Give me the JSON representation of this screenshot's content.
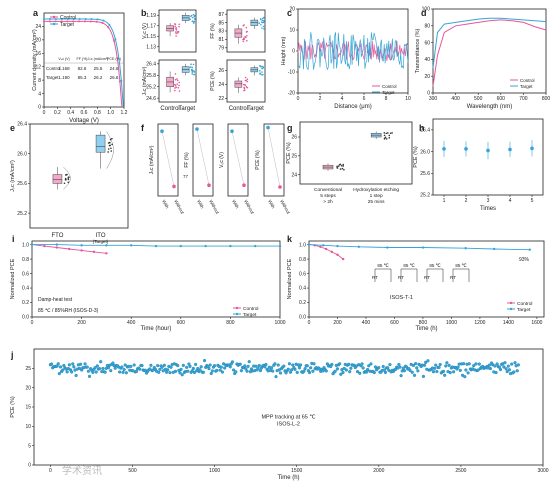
{
  "colors": {
    "control": "#e8559a",
    "target": "#36a5d6",
    "control_fill": "#f3a9cb",
    "target_fill": "#93cfee"
  },
  "legend": {
    "control": "Control",
    "target": "Target"
  },
  "panel_a": {
    "label": "a",
    "xlabel": "Voltage (V)",
    "ylabel": "Current density (mA/cm²)",
    "table": {
      "headers": [
        "Vₒc (V)",
        "FF (%)",
        "Jₛc (mA/cm²)",
        "PCE (%)"
      ],
      "rows": [
        {
          "name": "Control",
          "vals": [
            "1.168",
            "82.6",
            "25.5",
            "24.6"
          ]
        },
        {
          "name": "Target",
          "vals": [
            "1.190",
            "85.3",
            "26.2",
            "26.6"
          ]
        }
      ]
    }
  },
  "panel_b": {
    "label": "b",
    "subs": [
      "Vₒc (V)",
      "FF (%)",
      "Jₛc (mA/cm²)",
      "PCE (%)"
    ],
    "cats": [
      "Control",
      "Target"
    ]
  },
  "panel_c": {
    "label": "c",
    "xlabel": "Distance (μm)",
    "ylabel": "Height (nm)"
  },
  "panel_d": {
    "label": "d",
    "xlabel": "Wavelength (nm)",
    "ylabel": "Transmittance (%)"
  },
  "panel_e": {
    "label": "e",
    "ylabel": "Jₛc (mA/cm²)",
    "cats": [
      "FTO",
      "ITO"
    ],
    "sub": "(Target)"
  },
  "panel_f": {
    "label": "f",
    "subs": [
      "Jₛc (mA/cm²)",
      "FF (%)",
      "Vₒc (V)",
      "PCE (%)"
    ],
    "cats": [
      "With",
      "Without"
    ],
    "extra": "77"
  },
  "panel_g": {
    "label": "g",
    "ylabel": "PCE (%)",
    "notes": [
      [
        "Conventional",
        "5 steps",
        "> 2h"
      ],
      [
        "Hydroxylation etching",
        "1 step",
        "25 mins"
      ]
    ]
  },
  "panel_h": {
    "label": "h",
    "xlabel": "Times",
    "ylabel": "PCE (%)"
  },
  "panel_i": {
    "label": "i",
    "xlabel": "Time (hour)",
    "ylabel": "Normalized PCE",
    "notes": [
      "Damp-heat test",
      "85 ℃ / 85%RH (ISOS-D-3)"
    ]
  },
  "panel_k": {
    "label": "k",
    "xlabel": "Time (h)",
    "ylabel": "Normalized PCE",
    "notes": [
      "ISOS-T-1",
      "93%"
    ],
    "cycle": [
      "85 ℃",
      "RT"
    ]
  },
  "panel_j": {
    "label": "j",
    "xlabel": "Time (h)",
    "ylabel": "PCE (%)",
    "notes": [
      "MPP tracking at 65 ℃",
      "ISOS-L-2"
    ]
  },
  "watermark": "学术资讯",
  "chart_data": [
    {
      "id": "a",
      "type": "line",
      "x_range": [
        0,
        1.2
      ],
      "ylim": [
        0,
        28
      ],
      "xticks": [
        0,
        0.2,
        0.4,
        0.6,
        0.8,
        1.0,
        1.2
      ],
      "yticks": [
        0,
        4,
        8,
        12,
        16,
        20,
        24
      ],
      "series": [
        {
          "name": "Control",
          "jsc": 25.5,
          "voc": 1.168
        },
        {
          "name": "Target",
          "jsc": 26.2,
          "voc": 1.19
        }
      ]
    },
    {
      "id": "b",
      "type": "box",
      "panels": [
        {
          "metric": "VOC",
          "ylim": [
            1.12,
            1.2
          ],
          "yticks": [
            1.13,
            1.15,
            1.17,
            1.19
          ],
          "control": [
            1.15,
            1.16,
            1.165,
            1.17,
            1.175
          ],
          "target": [
            1.175,
            1.18,
            1.185,
            1.19,
            1.195
          ]
        },
        {
          "metric": "FF",
          "ylim": [
            78,
            88
          ],
          "yticks": [
            79,
            81,
            83,
            85,
            87
          ],
          "control": [
            80,
            81.5,
            82.5,
            83.5,
            84.5
          ],
          "target": [
            83.5,
            84.3,
            85,
            85.6,
            86.2
          ]
        },
        {
          "metric": "JSC",
          "ylim": [
            24.4,
            26.6
          ],
          "yticks": [
            24.6,
            25.2,
            25.8,
            26.4
          ],
          "control": [
            24.9,
            25.2,
            25.45,
            25.7,
            26
          ],
          "target": [
            25.8,
            25.95,
            26.1,
            26.25,
            26.4
          ]
        },
        {
          "metric": "PCE",
          "ylim": [
            21.5,
            27.5
          ],
          "yticks": [
            22,
            24,
            26
          ],
          "control": [
            22.8,
            23.6,
            24.1,
            24.5,
            25
          ],
          "target": [
            25.3,
            25.8,
            26.1,
            26.4,
            26.7
          ]
        }
      ]
    },
    {
      "id": "c",
      "type": "line",
      "xlim": [
        0,
        10
      ],
      "ylim": [
        -20,
        20
      ],
      "xticks": [
        0,
        2,
        4,
        6,
        8,
        10
      ],
      "yticks": [
        -20,
        -10,
        0,
        10,
        20
      ],
      "series": [
        {
          "name": "Control",
          "amplitude": 5
        },
        {
          "name": "Target",
          "amplitude": 9
        }
      ]
    },
    {
      "id": "d",
      "type": "line",
      "xlim": [
        300,
        800
      ],
      "ylim": [
        0,
        100
      ],
      "xticks": [
        300,
        400,
        500,
        600,
        700,
        800
      ],
      "yticks": [
        0,
        20,
        40,
        60,
        80,
        100
      ],
      "series": [
        {
          "name": "Control",
          "x": [
            300,
            320,
            350,
            400,
            450,
            500,
            550,
            600,
            650,
            700,
            750,
            800
          ],
          "y": [
            8,
            45,
            72,
            80,
            82,
            84,
            86,
            87,
            86,
            84,
            79,
            75
          ]
        },
        {
          "name": "Target",
          "x": [
            300,
            320,
            350,
            400,
            450,
            500,
            550,
            600,
            650,
            700,
            750,
            800
          ],
          "y": [
            30,
            72,
            82,
            84,
            86,
            88,
            89,
            89,
            88,
            87,
            86,
            85
          ]
        }
      ]
    },
    {
      "id": "e",
      "type": "box",
      "ylim": [
        25,
        26.4
      ],
      "yticks": [
        25.2,
        25.6,
        26,
        26.4
      ],
      "groups": [
        {
          "name": "FTO",
          "stats": [
            25.52,
            25.6,
            25.65,
            25.72,
            25.82
          ]
        },
        {
          "name": "ITO",
          "stats": [
            25.8,
            26.02,
            26.1,
            26.25,
            26.3
          ]
        }
      ]
    },
    {
      "id": "f",
      "type": "paired",
      "panels": [
        {
          "metric": "JSC",
          "ylim": [
            23.5,
            26.5
          ],
          "with": 26.2,
          "without": 23.9
        },
        {
          "metric": "FF",
          "ylim": [
            76,
            86
          ],
          "with": 85.3,
          "without": 77.5
        },
        {
          "metric": "VOC",
          "ylim": [
            1.1,
            1.2
          ],
          "with": 1.19,
          "without": 1.115
        },
        {
          "metric": "PCE",
          "ylim": [
            19,
            27
          ],
          "with": 26.6,
          "without": 20
        }
      ]
    },
    {
      "id": "g",
      "type": "box",
      "ylim": [
        23.5,
        26.8
      ],
      "yticks": [
        24,
        25,
        26
      ],
      "groups": [
        {
          "name": "Conventional",
          "stats": [
            24.2,
            24.3,
            24.4,
            24.5,
            24.6
          ]
        },
        {
          "name": "Hydroxylation etching",
          "stats": [
            25.9,
            26.0,
            26.1,
            26.2,
            26.3
          ]
        }
      ]
    },
    {
      "id": "h",
      "type": "errorbar",
      "xlim": [
        0.5,
        5.5
      ],
      "ylim": [
        25.2,
        26.6
      ],
      "xticks": [
        1,
        2,
        3,
        4,
        5
      ],
      "yticks": [
        25.2,
        25.6,
        26,
        26.4
      ],
      "x": [
        1,
        2,
        3,
        4,
        5
      ],
      "y": [
        26.05,
        26.05,
        26.02,
        26.04,
        26.06
      ],
      "err": [
        0.15,
        0.14,
        0.16,
        0.14,
        0.15
      ]
    },
    {
      "id": "i",
      "type": "line",
      "xlim": [
        0,
        1000
      ],
      "ylim": [
        0,
        1.05
      ],
      "xticks": [
        0,
        200,
        400,
        600,
        800,
        1000
      ],
      "yticks": [
        0,
        0.2,
        0.4,
        0.6,
        0.8,
        1.0
      ],
      "series": [
        {
          "name": "Control",
          "x": [
            0,
            50,
            100,
            150,
            200,
            250,
            300
          ],
          "y": [
            1.0,
            0.98,
            0.96,
            0.94,
            0.92,
            0.9,
            0.88
          ]
        },
        {
          "name": "Target",
          "x": [
            0,
            100,
            200,
            300,
            400,
            500,
            600,
            700,
            800,
            900,
            1000
          ],
          "y": [
            1.0,
            1.0,
            0.99,
            0.99,
            0.99,
            0.98,
            0.98,
            0.98,
            0.98,
            0.98,
            0.98
          ]
        }
      ]
    },
    {
      "id": "k",
      "type": "line",
      "xlim": [
        0,
        1650
      ],
      "ylim": [
        0,
        1.05
      ],
      "xticks": [
        0,
        200,
        400,
        600,
        800,
        1000,
        1200,
        1400,
        1600
      ],
      "yticks": [
        0,
        0.2,
        0.4,
        0.6,
        0.8,
        1.0
      ],
      "series": [
        {
          "name": "Control",
          "x": [
            0,
            40,
            80,
            120,
            160,
            200,
            240
          ],
          "y": [
            1.0,
            0.99,
            0.97,
            0.94,
            0.9,
            0.86,
            0.8
          ]
        },
        {
          "name": "Target",
          "x": [
            0,
            100,
            200,
            350,
            550,
            800,
            1100,
            1300,
            1550
          ],
          "y": [
            1.0,
            0.99,
            0.98,
            0.97,
            0.96,
            0.96,
            0.95,
            0.94,
            0.93
          ]
        }
      ]
    },
    {
      "id": "j",
      "type": "scatter",
      "xlim": [
        -100,
        3000
      ],
      "ylim": [
        0,
        30
      ],
      "xticks": [
        0,
        500,
        1000,
        1500,
        2000,
        2500,
        3000
      ],
      "yticks": [
        0,
        5,
        10,
        15,
        20,
        25
      ],
      "series": [
        {
          "name": "MPP",
          "x_range": [
            0,
            2850
          ],
          "y_mean": 25.0,
          "y_spread": 1.2
        }
      ]
    }
  ]
}
